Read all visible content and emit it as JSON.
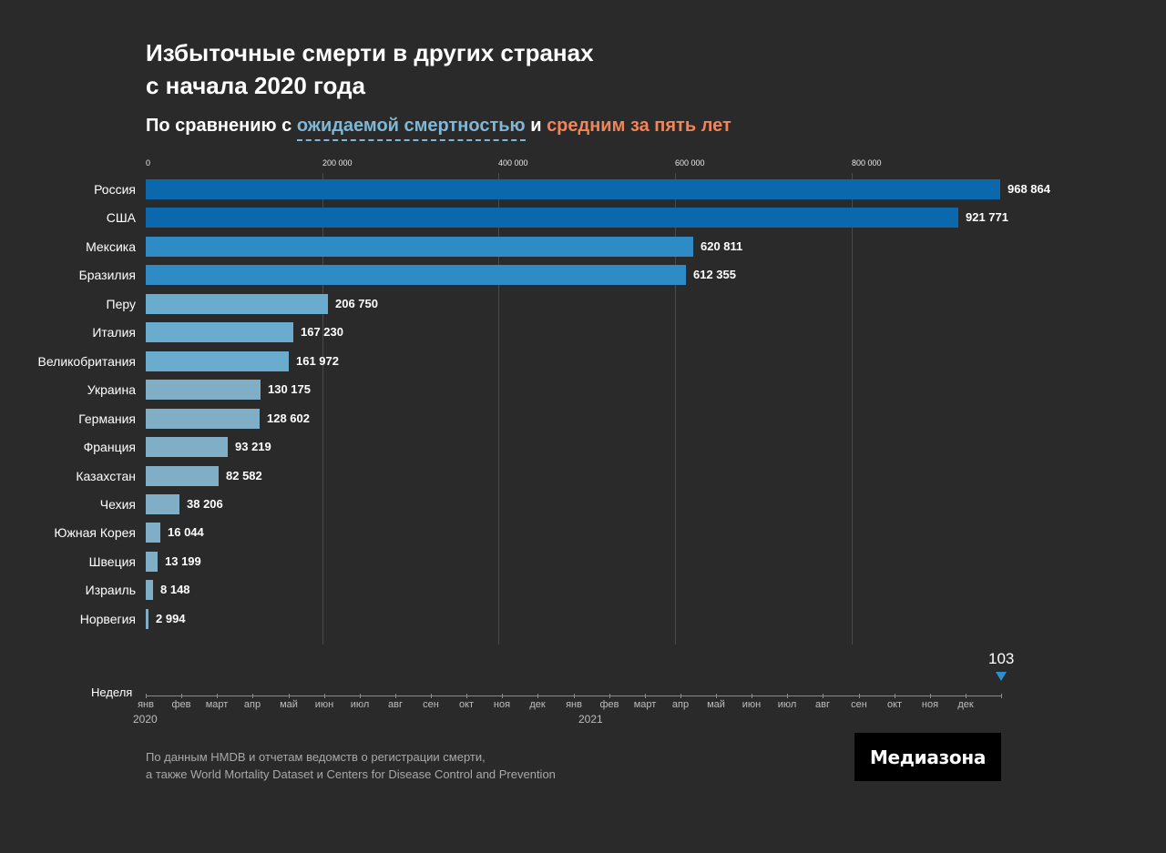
{
  "title_line1": "Избыточные смерти в других странах",
  "title_line2": "с начала 2020 года",
  "subtitle": {
    "prefix": "По сравнению с ",
    "expected": "ожидаемой смертностью",
    "middle": " и ",
    "average": "средним за пять лет",
    "expected_color": "#7fb7d6",
    "average_color": "#f0855a"
  },
  "chart_data": {
    "type": "bar",
    "orientation": "horizontal",
    "title": "Избыточные смерти в других странах с начала 2020 года",
    "xlim": [
      0,
      968864
    ],
    "x_ticks": [
      "0",
      "200 000",
      "400 000",
      "600 000",
      "800 000"
    ],
    "x_tick_values": [
      0,
      200000,
      400000,
      600000,
      800000
    ],
    "grid": true,
    "categories": [
      "Россия",
      "США",
      "Мексика",
      "Бразилия",
      "Перу",
      "Италия",
      "Великобритания",
      "Украина",
      "Германия",
      "Франция",
      "Казахстан",
      "Чехия",
      "Южная Корея",
      "Швеция",
      "Израиль",
      "Норвегия"
    ],
    "values": [
      968864,
      921771,
      620811,
      612355,
      206750,
      167230,
      161972,
      130175,
      128602,
      93219,
      82582,
      38206,
      16044,
      13199,
      8148,
      2994
    ],
    "value_labels": [
      "968 864",
      "921 771",
      "620 811",
      "612 355",
      "206 750",
      "167 230",
      "161 972",
      "130 175",
      "128 602",
      "93 219",
      "82 582",
      "38 206",
      "16 044",
      "13 199",
      "8 148",
      "2 994"
    ],
    "bar_colors": [
      "#0b68ac",
      "#0b68ac",
      "#2f8bc6",
      "#2f8bc6",
      "#6aaccd",
      "#6aaccd",
      "#6aaccd",
      "#7faec6",
      "#7faec6",
      "#7faec6",
      "#7faec6",
      "#7faec6",
      "#7faec6",
      "#7faec6",
      "#7faec6",
      "#7faec6"
    ]
  },
  "week_axis": {
    "label": "Неделя",
    "current_week": "103",
    "marker_color": "#2b8fd0",
    "months": [
      "янв",
      "фев",
      "март",
      "апр",
      "май",
      "июн",
      "июл",
      "авг",
      "сен",
      "окт",
      "ноя",
      "дек",
      "янв",
      "фев",
      "март",
      "апр",
      "май",
      "июн",
      "июл",
      "авг",
      "сен",
      "окт",
      "ноя",
      "дек"
    ],
    "years": [
      "2020",
      "2021"
    ]
  },
  "source_line1": "По данным HMDB и отчетам ведомств о регистрации смерти,",
  "source_line2": "а также World Mortality Dataset и Centers for Disease Control and Prevention",
  "logo": "Медиазона"
}
